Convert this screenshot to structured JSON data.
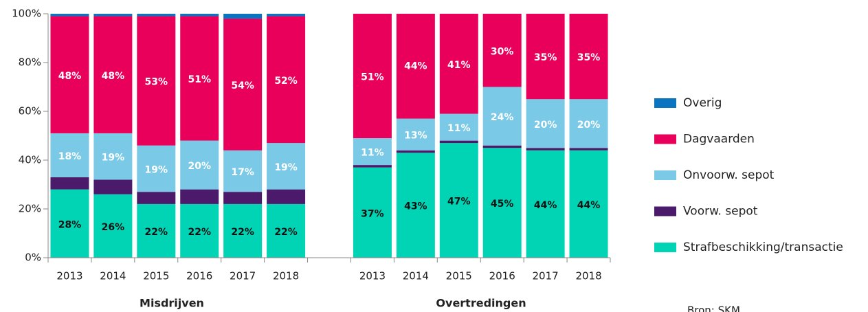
{
  "chart_data": {
    "type": "stacked_bar",
    "categories": [
      "2013",
      "2014",
      "2015",
      "2016",
      "2017",
      "2018",
      null,
      "2013",
      "2014",
      "2015",
      "2016",
      "2017",
      "2018"
    ],
    "series": [
      {
        "name": "Strafbeschikking/transactie",
        "color": "#00d4b4",
        "label_color": "#111111",
        "values": [
          28,
          26,
          22,
          22,
          22,
          22,
          null,
          37,
          43,
          47,
          45,
          44,
          44
        ],
        "value_labels": [
          "28%",
          "26%",
          "22%",
          "22%",
          "22%",
          "22%",
          null,
          "37%",
          "43%",
          "47%",
          "45%",
          "44%",
          "44%"
        ]
      },
      {
        "name": "Voorw. sepot",
        "color": "#4b1a6b",
        "values": [
          5,
          6,
          5,
          6,
          5,
          6,
          null,
          1,
          1,
          1,
          1,
          1,
          1
        ]
      },
      {
        "name": "Onvoorw. sepot",
        "color": "#7ac9e6",
        "label_color": "#ffffff",
        "values": [
          18,
          19,
          19,
          20,
          17,
          19,
          null,
          11,
          13,
          11,
          24,
          20,
          20
        ],
        "value_labels": [
          "18%",
          "19%",
          "19%",
          "20%",
          "17%",
          "19%",
          null,
          "11%",
          "13%",
          "11%",
          "24%",
          "20%",
          "20%"
        ]
      },
      {
        "name": "Dagvaarden",
        "color": "#e8005b",
        "label_color": "#ffffff",
        "values": [
          48,
          48,
          53,
          51,
          54,
          52,
          null,
          51,
          44,
          41,
          30,
          35,
          35
        ],
        "value_labels": [
          "48%",
          "48%",
          "53%",
          "51%",
          "54%",
          "52%",
          null,
          "51%",
          "44%",
          "41%",
          "30%",
          "35%",
          "35%"
        ]
      },
      {
        "name": "Overig",
        "color": "#0a74c0",
        "values": [
          1,
          1,
          1,
          1,
          2,
          1,
          null,
          0,
          0,
          0,
          0,
          0,
          0
        ]
      }
    ],
    "ylim": [
      0,
      100
    ],
    "yticks": [
      {
        "value": 0,
        "label": "0%"
      },
      {
        "value": 20,
        "label": "20%"
      },
      {
        "value": 40,
        "label": "40%"
      },
      {
        "value": 60,
        "label": "60%"
      },
      {
        "value": 80,
        "label": "80%"
      },
      {
        "value": 100,
        "label": "100%"
      }
    ],
    "grid": false,
    "legend": "right",
    "annotations": [
      "Misdrijven",
      "Overtredingen"
    ],
    "source": "Bron: SKM"
  }
}
